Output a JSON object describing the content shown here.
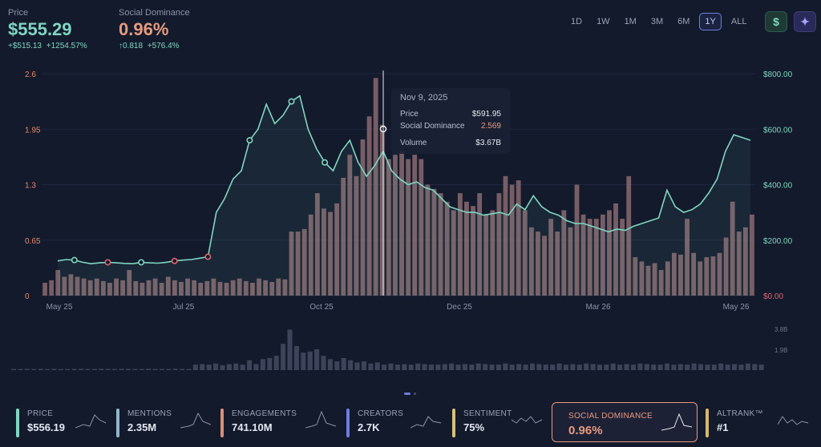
{
  "header": {
    "price": {
      "label": "Price",
      "value": "$555.29",
      "change_abs": "+$515.13",
      "change_pct": "+1254.57%"
    },
    "dominance": {
      "label": "Social Dominance",
      "value": "0.96%",
      "change_abs": "↑0.818",
      "change_pct": "+576.4%"
    }
  },
  "ranges": [
    "1D",
    "1W",
    "1M",
    "3M",
    "6M",
    "1Y",
    "ALL"
  ],
  "active_range": "1Y",
  "icons": {
    "currency": "dollar-icon",
    "ai": "sparkle-icon"
  },
  "colors": {
    "price_line": "#7fd6c2",
    "bars": "#8a6a70",
    "dominance_axis": "#e08a6e",
    "accent": "#6f7de0"
  },
  "tooltip": {
    "date": "Nov 9, 2025",
    "price_label": "Price",
    "price_value": "$591.95",
    "dominance_label": "Social Dominance",
    "dominance_value": "2.569",
    "volume_label": "Volume",
    "volume_value": "$3.67B"
  },
  "chart_data": {
    "type": "bar",
    "left_axis_ticks": [
      "2.6",
      "1.95",
      "1.3",
      "0.65",
      "0"
    ],
    "right_axis_ticks": [
      "$800.00",
      "$600.00",
      "$400.00",
      "$200.00",
      "$0.00"
    ],
    "x_tick_labels": [
      "May 25",
      "Jul 25",
      "Oct 25",
      "Dec 25",
      "Mar 26",
      "May 26"
    ],
    "volume_axis_ticks": [
      "3.8B",
      "1.9B"
    ],
    "ylim_dominance": [
      0,
      2.6
    ],
    "ylim_price": [
      0,
      800
    ],
    "ylim_volume": [
      0,
      3.8
    ],
    "series": [
      {
        "values": [
          0.15,
          0.18,
          0.3,
          0.22,
          0.25,
          0.22,
          0.2,
          0.18,
          0.2,
          0.17,
          0.15,
          0.2,
          0.18,
          0.3,
          0.17,
          0.15,
          0.18,
          0.2,
          0.15,
          0.22,
          0.18,
          0.16,
          0.2,
          0.18,
          0.15,
          0.17,
          0.2,
          0.16,
          0.15,
          0.18,
          0.2,
          0.17,
          0.15,
          0.2,
          0.18,
          0.16,
          0.2,
          0.19,
          0.75,
          0.75,
          0.78,
          0.95,
          1.2,
          1.02,
          0.98,
          1.08,
          1.38,
          1.65,
          1.4,
          1.83,
          2.1,
          2.55,
          2.0,
          1.6,
          1.65,
          1.7,
          1.6,
          1.65,
          1.6,
          1.3,
          1.25,
          1.2,
          1.1,
          1.0,
          1.2,
          1.1,
          1.05,
          1.2,
          0.95,
          1.0,
          1.2,
          1.4,
          1.3,
          1.35,
          1.0,
          0.8,
          0.75,
          0.7,
          0.9,
          0.75,
          1.0,
          0.8,
          1.3,
          0.95,
          0.9,
          0.9,
          0.95,
          1.0,
          1.08,
          0.9,
          1.4,
          0.45,
          0.4,
          0.35,
          0.38,
          0.3,
          0.4,
          0.5,
          0.48,
          0.9,
          0.5,
          0.4,
          0.45,
          0.46,
          0.5,
          0.68,
          1.1,
          0.75,
          0.8,
          0.95
        ]
      },
      {
        "values": [
          125,
          130,
          128,
          120,
          115,
          118,
          120,
          118,
          116,
          115,
          120,
          118,
          117,
          120,
          125,
          128,
          130,
          135,
          140,
          300,
          350,
          420,
          450,
          560,
          600,
          690,
          620,
          650,
          700,
          720,
          600,
          530,
          480,
          450,
          520,
          560,
          480,
          430,
          470,
          520,
          450,
          420,
          400,
          410,
          390,
          380,
          350,
          320,
          310,
          300,
          300,
          290,
          295,
          300,
          290,
          330,
          310,
          360,
          320,
          300,
          290,
          270,
          260,
          260,
          250,
          240,
          230,
          240,
          235,
          250,
          260,
          270,
          280,
          380,
          320,
          300,
          310,
          330,
          370,
          420,
          520,
          580,
          570,
          560
        ]
      },
      {
        "values": [
          0.1,
          0.1,
          0.12,
          0.1,
          0.11,
          0.1,
          0.12,
          0.1,
          0.1,
          0.11,
          0.12,
          0.1,
          0.1,
          0.12,
          0.11,
          0.1,
          0.12,
          0.11,
          0.1,
          0.1,
          0.12,
          0.11,
          0.1,
          0.1,
          0.12,
          0.11,
          0.1,
          0.5,
          0.55,
          0.5,
          0.6,
          0.45,
          0.55,
          0.6,
          0.5,
          0.9,
          0.55,
          1.0,
          1.1,
          1.3,
          2.4,
          3.7,
          2.2,
          1.6,
          1.7,
          1.9,
          1.3,
          1.0,
          0.8,
          1.1,
          0.9,
          0.7,
          0.8,
          0.6,
          0.7,
          0.5,
          0.6,
          0.5,
          0.55,
          0.5,
          0.6,
          0.55,
          0.5,
          0.5,
          0.55,
          0.6,
          0.5,
          0.55,
          0.5,
          0.6,
          0.55,
          0.5,
          0.5,
          0.6,
          0.5,
          0.55,
          0.5,
          0.6,
          0.55,
          0.5,
          0.5,
          0.6,
          0.5,
          0.55,
          0.5,
          0.6,
          0.55,
          0.5,
          0.5,
          0.6,
          0.5,
          0.55,
          0.5,
          0.6,
          0.55,
          0.5,
          0.5,
          0.6,
          0.5,
          0.55,
          0.5,
          0.6,
          0.55,
          0.5,
          0.5,
          0.6,
          0.5,
          0.55,
          0.5,
          0.6,
          0.55,
          0.5
        ]
      }
    ]
  },
  "cards": [
    {
      "label": "PRICE",
      "value": "$556.19",
      "color": "#7fd6c2"
    },
    {
      "label": "MENTIONS",
      "value": "2.35M",
      "color": "#8fb7c9"
    },
    {
      "label": "ENGAGEMENTS",
      "value": "741.10M",
      "color": "#d7907a"
    },
    {
      "label": "CREATORS",
      "value": "2.7K",
      "color": "#6f7de0"
    },
    {
      "label": "SENTIMENT",
      "value": "75%",
      "color": "#d6c07a"
    },
    {
      "label": "SOCIAL DOMINANCE",
      "value": "0.96%",
      "color": "#e79a7e"
    },
    {
      "label": "ALTRANK™",
      "value": "#1",
      "color": "#d6b86a"
    }
  ]
}
